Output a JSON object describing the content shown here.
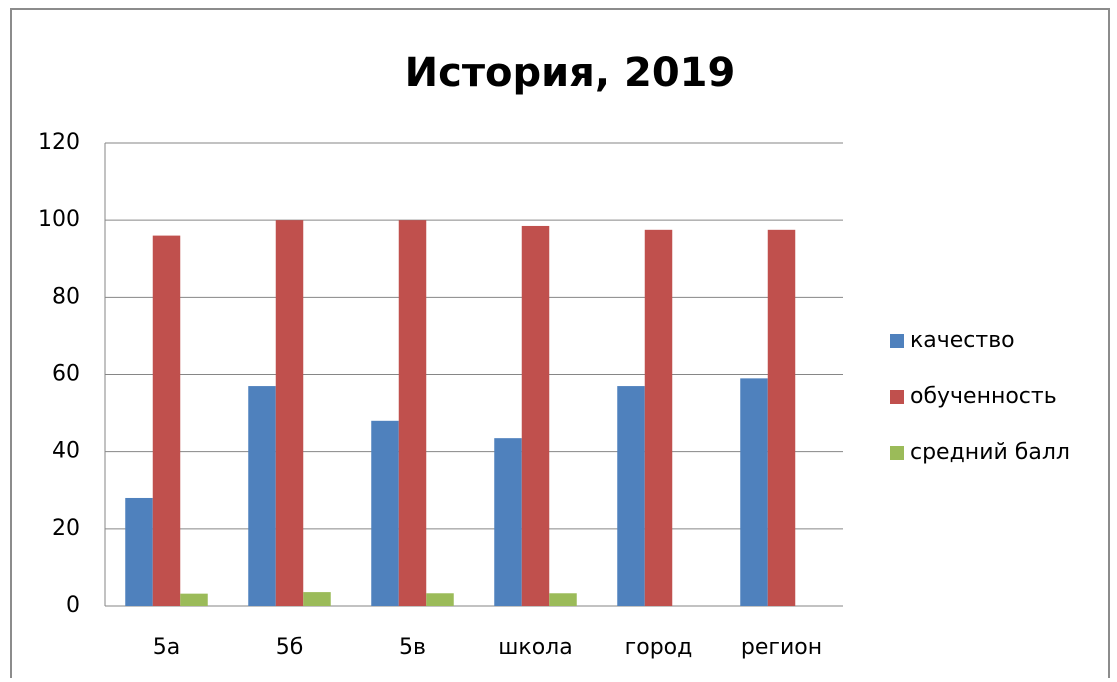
{
  "chart_data": {
    "type": "bar",
    "title": "История, 2019",
    "categories": [
      "5а",
      "5б",
      "5в",
      "школа",
      "город",
      "регион"
    ],
    "series": [
      {
        "name": "качество",
        "color": "#4f81bd",
        "values": [
          28,
          57,
          48,
          43.5,
          57,
          59
        ]
      },
      {
        "name": "обученность",
        "color": "#c0504d",
        "values": [
          96,
          100,
          100,
          98.5,
          97.5,
          97.5
        ]
      },
      {
        "name": "средний балл",
        "color": "#9bbb59",
        "values": [
          3.2,
          3.6,
          3.3,
          3.3,
          null,
          null
        ]
      }
    ],
    "ylim": [
      0,
      120
    ],
    "yticks": [
      0,
      20,
      40,
      60,
      80,
      100,
      120
    ],
    "grid": true,
    "legend": "right"
  }
}
